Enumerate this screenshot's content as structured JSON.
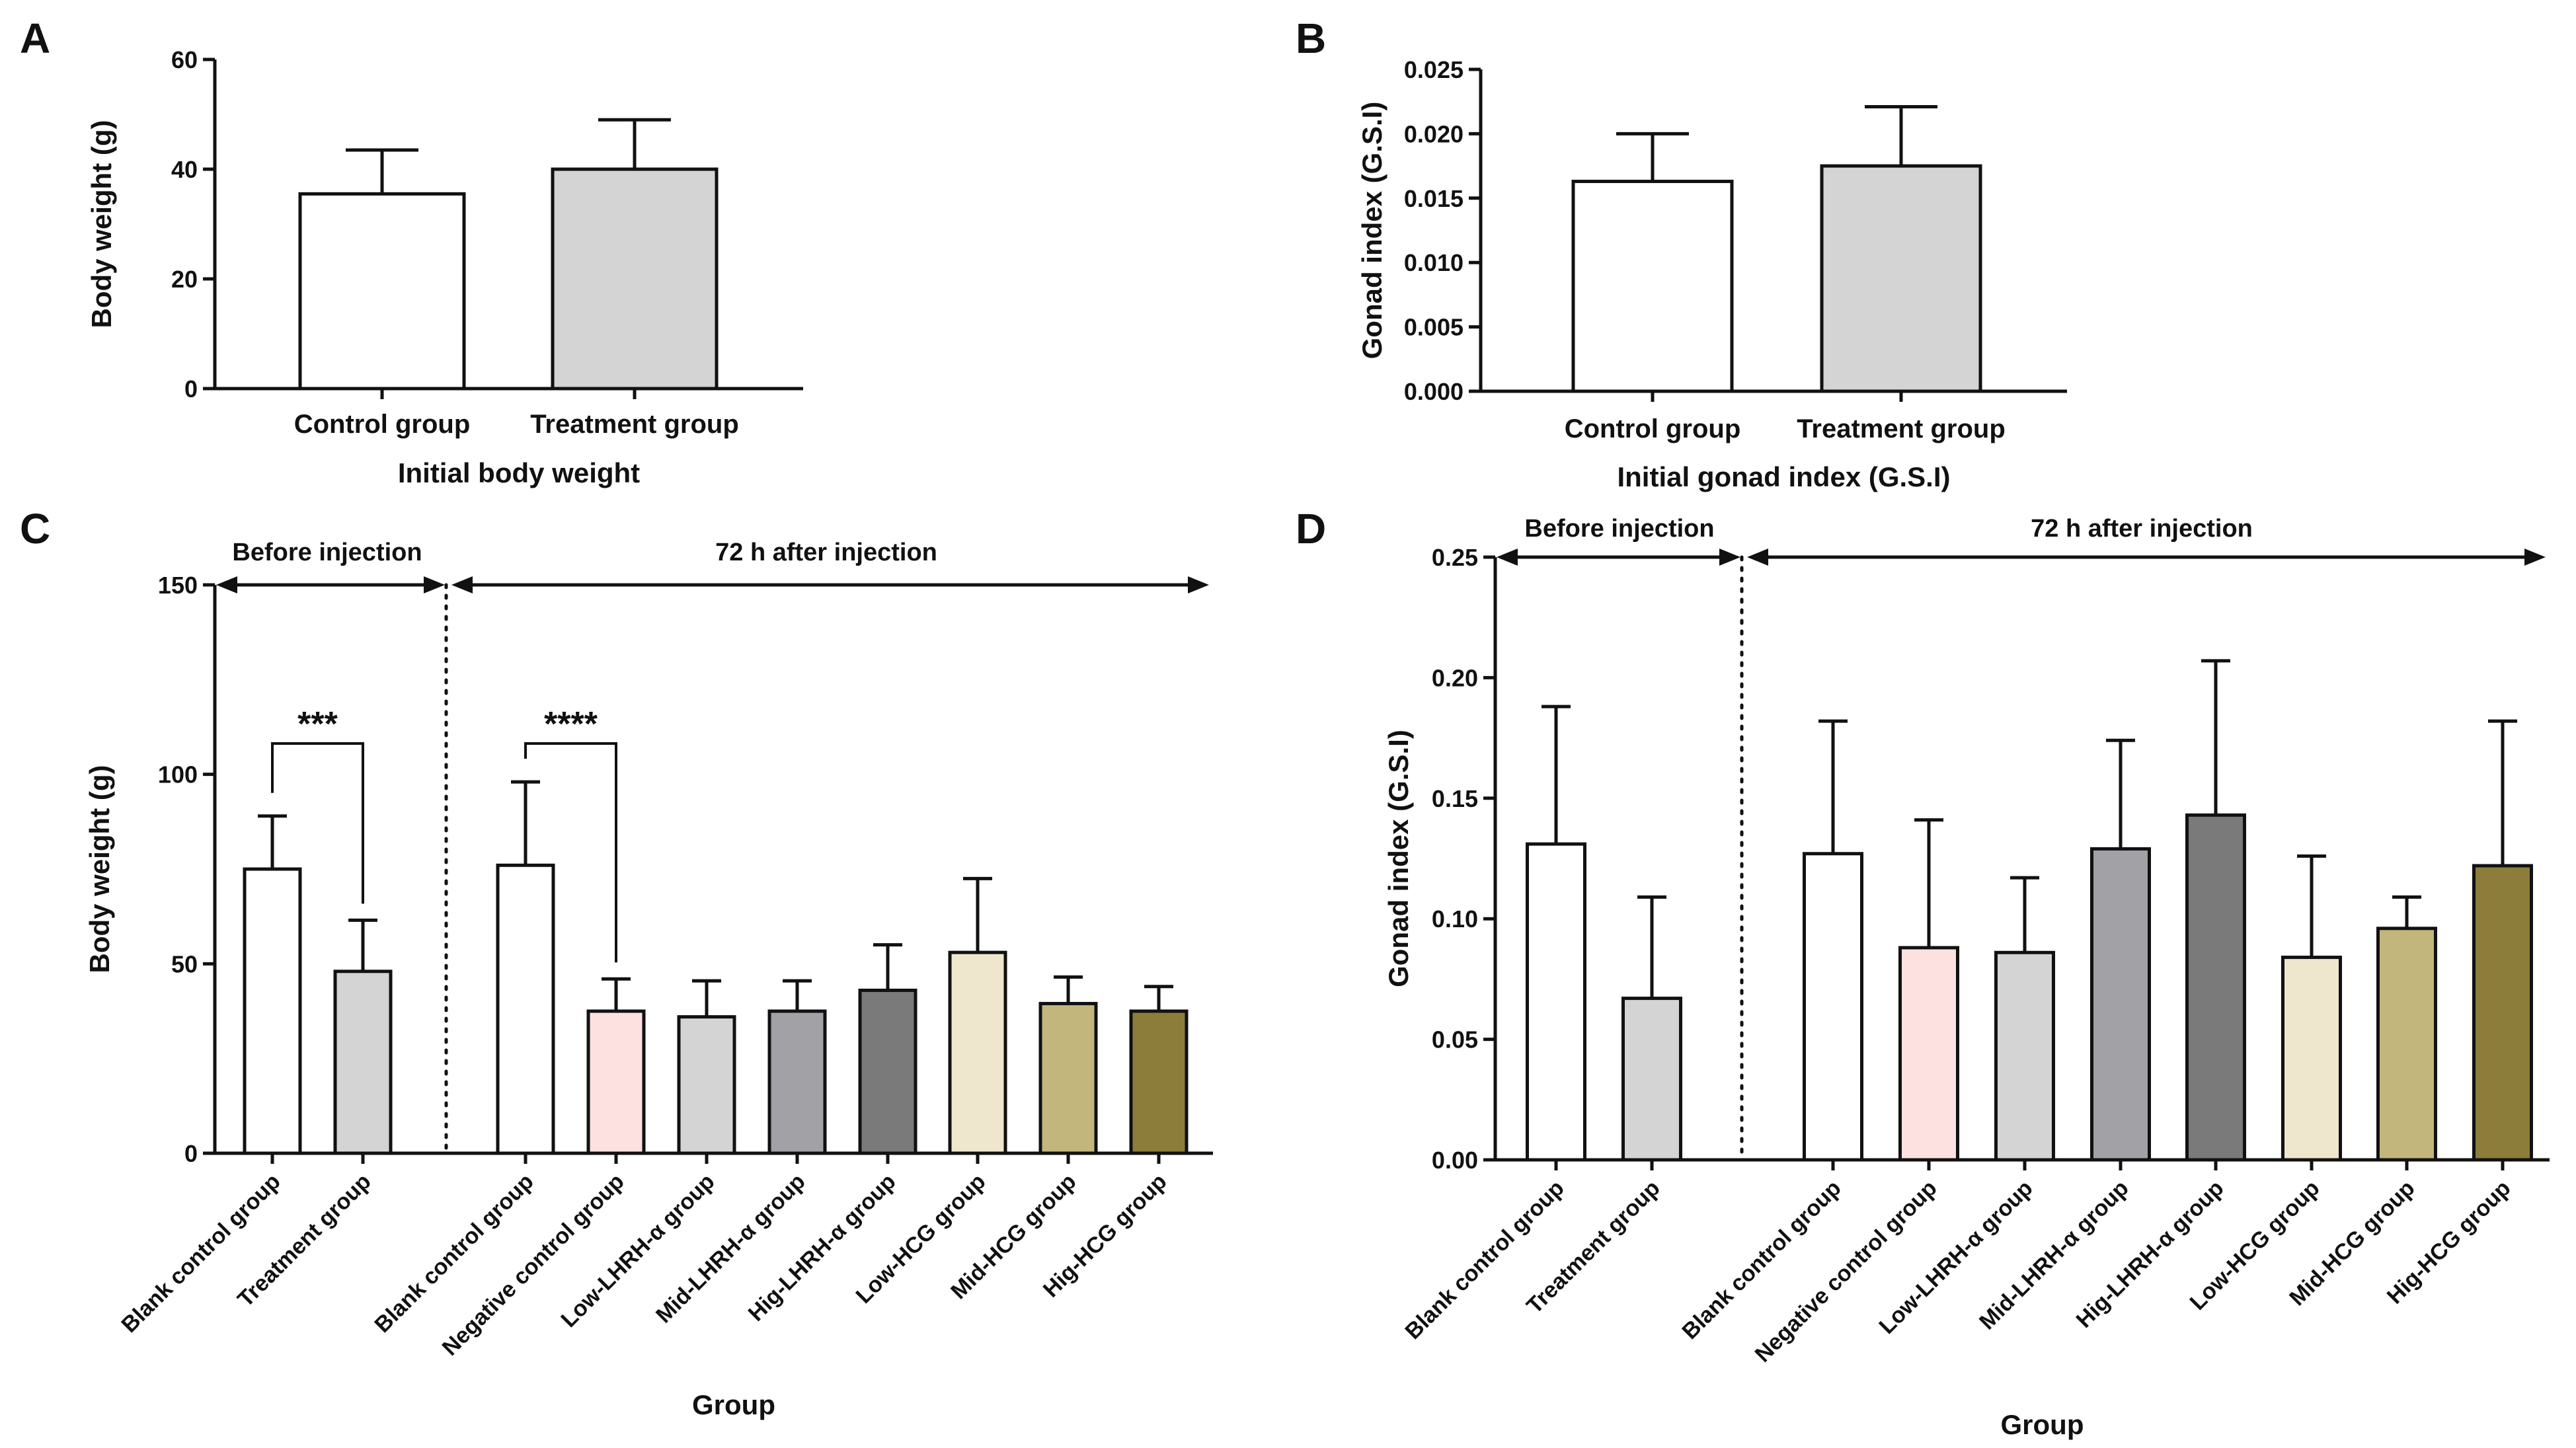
{
  "chart_data": [
    {
      "panel": "A",
      "type": "bar",
      "categories": [
        "Control group",
        "Treatment group"
      ],
      "values": [
        35.5,
        40
      ],
      "errors": [
        8,
        9
      ],
      "colors": [
        "#ffffff",
        "#d4d4d4"
      ],
      "xlabel": "Initial body weight",
      "ylabel": "Body weight (g)",
      "ylim": [
        0,
        60
      ],
      "yticks": [
        "0",
        "20",
        "40",
        "60"
      ]
    },
    {
      "panel": "B",
      "type": "bar",
      "categories": [
        "Control group",
        "Treatment group"
      ],
      "values": [
        0.0163,
        0.0175
      ],
      "errors": [
        0.0037,
        0.0046
      ],
      "colors": [
        "#ffffff",
        "#d4d4d4"
      ],
      "xlabel": "Initial gonad index (G.S.I)",
      "ylabel": "Gonad index (G.S.I)",
      "ylim": [
        0,
        0.025
      ],
      "yticks": [
        "0.000",
        "0.005",
        "0.010",
        "0.015",
        "0.020",
        "0.025"
      ]
    },
    {
      "panel": "C",
      "type": "bar",
      "categories": [
        "Blank control group",
        "Treatment group",
        "Blank control group",
        "Negative control group",
        "Low-LHRH-α group",
        "Mid-LHRH-α group",
        "Hig-LHRH-α group",
        "Low-HCG group",
        "Mid-HCG group",
        "Hig-HCG group"
      ],
      "values": [
        75,
        48,
        76,
        37.5,
        36,
        37.5,
        43,
        53,
        39.5,
        37.5
      ],
      "errors": [
        14,
        13.5,
        22,
        8.5,
        9.5,
        8,
        12,
        19.5,
        7,
        6.5
      ],
      "colors": [
        "#ffffff",
        "#d4d4d4",
        "#ffffff",
        "#fde1e1",
        "#d4d4d4",
        "#a1a1a6",
        "#7a7a7a",
        "#eee7cd",
        "#c2b67c",
        "#8c7d3a"
      ],
      "xlabel": "Group",
      "ylabel": "Body weight (g)",
      "ylim": [
        0,
        150
      ],
      "yticks": [
        "0",
        "50",
        "100",
        "150"
      ],
      "phases": [
        "Before injection",
        "72 h after injection"
      ],
      "significance": [
        {
          "from": 0,
          "to": 1,
          "label": "***"
        },
        {
          "from": 2,
          "to": 3,
          "label": "****"
        }
      ]
    },
    {
      "panel": "D",
      "type": "bar",
      "categories": [
        "Blank control group",
        "Treatment group",
        "Blank control group",
        "Negative control group",
        "Low-LHRH-α group",
        "Mid-LHRH-α group",
        "Hig-LHRH-α group",
        "Low-HCG group",
        "Mid-HCG group",
        "Hig-HCG group"
      ],
      "values": [
        0.131,
        0.067,
        0.127,
        0.088,
        0.086,
        0.129,
        0.143,
        0.084,
        0.096,
        0.122
      ],
      "errors": [
        0.057,
        0.042,
        0.055,
        0.053,
        0.031,
        0.045,
        0.064,
        0.042,
        0.013,
        0.06
      ],
      "colors": [
        "#ffffff",
        "#d4d4d4",
        "#ffffff",
        "#fde1e1",
        "#d4d4d4",
        "#a1a1a6",
        "#7a7a7a",
        "#eee7cd",
        "#c2b67c",
        "#8c7d3a"
      ],
      "xlabel": "Group",
      "ylabel": "Gonad index (G.S.I)",
      "ylim": [
        0,
        0.25
      ],
      "yticks": [
        "0.00",
        "0.05",
        "0.10",
        "0.15",
        "0.20",
        "0.25"
      ],
      "phases": [
        "Before injection",
        "72 h after injection"
      ]
    }
  ]
}
